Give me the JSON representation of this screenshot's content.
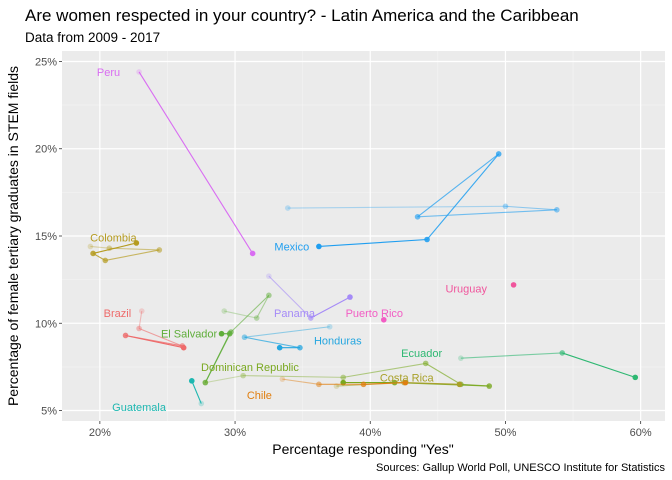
{
  "chart_data": {
    "type": "scatter",
    "title": "Are women respected in your country? - Latin America and the Caribbean",
    "subtitle": "Data from 2009 - 2017",
    "xlabel": "Percentage responding \"Yes\"",
    "ylabel": "Percentage of female tertiary graduates in STEM fields",
    "caption": "Sources: Gallup World Poll, UNESCO Institute for Statistics",
    "xlim": [
      17.2,
      61.8
    ],
    "ylim": [
      4.4,
      25.6
    ],
    "x_ticks": [
      20,
      30,
      40,
      50,
      60
    ],
    "x_tick_labels": [
      "20%",
      "30%",
      "40%",
      "50%",
      "60%"
    ],
    "y_ticks": [
      5,
      10,
      15,
      20,
      25
    ],
    "y_tick_labels": [
      "5%",
      "10%",
      "15%",
      "20%",
      "25%"
    ],
    "grid": true,
    "legend": "none",
    "series": [
      {
        "name": "Peru",
        "color": "#D96DF2",
        "label_pos": [
          21.5,
          24.4
        ],
        "label_align": "end",
        "points": [
          [
            22.9,
            24.4
          ],
          [
            31.3,
            14.0
          ]
        ]
      },
      {
        "name": "Mexico",
        "color": "#1F9EF0",
        "label_pos": [
          34.2,
          14.4
        ],
        "label_align": "middle",
        "points": [
          [
            33.9,
            16.6
          ],
          [
            50.0,
            16.7
          ],
          [
            53.8,
            16.5
          ],
          [
            43.5,
            16.1
          ],
          [
            49.5,
            19.7
          ],
          [
            44.2,
            14.8
          ],
          [
            36.2,
            14.4
          ]
        ]
      },
      {
        "name": "Colombia",
        "color": "#B59B1F",
        "label_pos": [
          21.0,
          14.9
        ],
        "label_align": "middle",
        "points": [
          [
            19.3,
            14.4
          ],
          [
            20.7,
            14.3
          ],
          [
            24.4,
            14.2
          ],
          [
            20.4,
            13.6
          ],
          [
            19.5,
            14.0
          ],
          [
            22.7,
            14.6
          ]
        ]
      },
      {
        "name": "Uruguay",
        "color": "#F0559C",
        "label_pos": [
          47.1,
          12.0
        ],
        "label_align": "middle",
        "points": [
          [
            50.6,
            12.2
          ]
        ]
      },
      {
        "name": "Brazil",
        "color": "#EE6A6A",
        "label_pos": [
          21.3,
          10.6
        ],
        "label_align": "middle",
        "points": [
          [
            23.1,
            10.7
          ],
          [
            22.9,
            9.7
          ],
          [
            26.1,
            8.7
          ],
          [
            21.9,
            9.3
          ],
          [
            26.2,
            8.6
          ]
        ]
      },
      {
        "name": "Puerto Rico",
        "color": "#F25DC4",
        "label_pos": [
          40.3,
          10.6
        ],
        "label_align": "middle",
        "points": [
          [
            41.0,
            10.2
          ]
        ]
      },
      {
        "name": "Panama",
        "color": "#A58BF7",
        "label_pos": [
          34.4,
          10.6
        ],
        "label_align": "middle",
        "points": [
          [
            32.5,
            12.7
          ],
          [
            35.6,
            10.3
          ],
          [
            38.5,
            11.5
          ]
        ]
      },
      {
        "name": "El Salvador",
        "color": "#5FAE3A",
        "label_pos": [
          26.6,
          9.4
        ],
        "label_align": "middle",
        "points": [
          [
            29.2,
            10.7
          ],
          [
            31.6,
            10.3
          ],
          [
            32.5,
            11.6
          ],
          [
            29.7,
            9.5
          ],
          [
            27.8,
            6.6
          ],
          [
            29.6,
            9.4
          ],
          [
            29.0,
            9.4
          ]
        ]
      },
      {
        "name": "Honduras",
        "color": "#24A6E0",
        "label_pos": [
          37.6,
          9.0
        ],
        "label_align": "middle",
        "points": [
          [
            37.0,
            9.8
          ],
          [
            30.7,
            9.2
          ],
          [
            34.8,
            8.6
          ],
          [
            33.3,
            8.6
          ]
        ]
      },
      {
        "name": "Ecuador",
        "color": "#2EB872",
        "label_pos": [
          43.8,
          8.3
        ],
        "label_align": "middle",
        "points": [
          [
            46.7,
            8.0
          ],
          [
            54.2,
            8.3
          ],
          [
            59.6,
            6.9
          ]
        ]
      },
      {
        "name": "Dominican Republic",
        "color": "#79A81F",
        "label_pos": [
          31.1,
          7.5
        ],
        "label_align": "middle",
        "points": [
          [
            27.8,
            6.6
          ],
          [
            30.6,
            7.0
          ],
          [
            38.0,
            6.9
          ],
          [
            44.1,
            7.7
          ],
          [
            46.7,
            6.5
          ],
          [
            48.8,
            6.4
          ],
          [
            41.8,
            6.6
          ],
          [
            38.0,
            6.6
          ]
        ]
      },
      {
        "name": "Costa Rica",
        "color": "#A8A028",
        "label_pos": [
          42.7,
          6.9
        ],
        "label_align": "middle",
        "points": [
          [
            37.5,
            6.4
          ],
          [
            42.5,
            6.6
          ],
          [
            46.6,
            6.5
          ]
        ]
      },
      {
        "name": "Chile",
        "color": "#E07E0F",
        "label_pos": [
          31.8,
          5.9
        ],
        "label_align": "middle",
        "points": [
          [
            33.5,
            6.8
          ],
          [
            36.2,
            6.5
          ],
          [
            39.5,
            6.5
          ],
          [
            42.6,
            6.6
          ]
        ]
      },
      {
        "name": "Guatemala",
        "color": "#1DB7B0",
        "label_pos": [
          22.9,
          5.2
        ],
        "label_align": "middle",
        "points": [
          [
            27.5,
            5.4
          ],
          [
            26.8,
            6.7
          ]
        ]
      }
    ]
  }
}
